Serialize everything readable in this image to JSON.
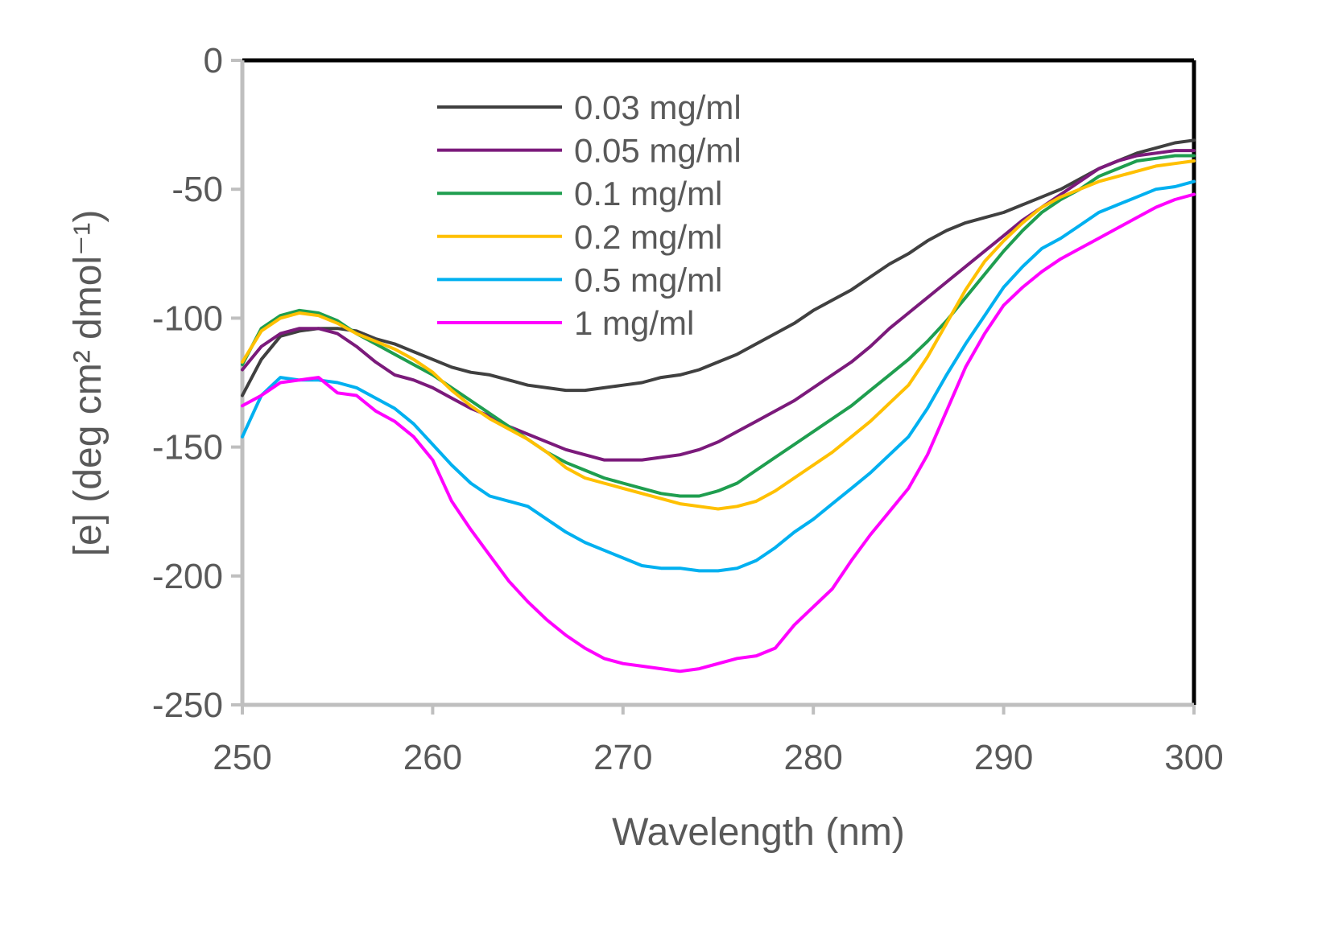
{
  "chart_data": {
    "type": "line",
    "xlabel": "Wavelength (nm)",
    "ylabel": "[e] (deg cm² dmol⁻¹)",
    "xlim": [
      250,
      300
    ],
    "ylim": [
      -250,
      0
    ],
    "xticks": [
      "250",
      "260",
      "270",
      "280",
      "290",
      "300"
    ],
    "yticks": [
      "0",
      "-50",
      "-100",
      "-150",
      "-200",
      "-250"
    ],
    "grid": false,
    "legend_position": "upper-center",
    "series": [
      {
        "name": "0.03 mg/ml",
        "color": "#404040",
        "x": [
          250,
          251,
          252,
          253,
          254,
          255,
          256,
          257,
          258,
          259,
          260,
          261,
          262,
          263,
          264,
          265,
          266,
          267,
          268,
          269,
          270,
          271,
          272,
          273,
          274,
          275,
          276,
          277,
          278,
          279,
          280,
          281,
          282,
          283,
          284,
          285,
          286,
          287,
          288,
          289,
          290,
          291,
          292,
          293,
          294,
          295,
          296,
          297,
          298,
          299,
          300
        ],
        "y": [
          -130,
          -116,
          -107,
          -105,
          -104,
          -104,
          -105,
          -108,
          -110,
          -113,
          -116,
          -119,
          -121,
          -122,
          -124,
          -126,
          -127,
          -128,
          -128,
          -127,
          -126,
          -125,
          -123,
          -122,
          -120,
          -117,
          -114,
          -110,
          -106,
          -102,
          -97,
          -93,
          -89,
          -84,
          -79,
          -75,
          -70,
          -66,
          -63,
          -61,
          -59,
          -56,
          -53,
          -50,
          -46,
          -42,
          -39,
          -36,
          -34,
          -32,
          -31
        ]
      },
      {
        "name": "0.05 mg/ml",
        "color": "#7B1A7B",
        "x": [
          250,
          251,
          252,
          253,
          254,
          255,
          256,
          257,
          258,
          259,
          260,
          261,
          262,
          263,
          264,
          265,
          266,
          267,
          268,
          269,
          270,
          271,
          272,
          273,
          274,
          275,
          276,
          277,
          278,
          279,
          280,
          281,
          282,
          283,
          284,
          285,
          286,
          287,
          288,
          289,
          290,
          291,
          292,
          293,
          294,
          295,
          296,
          297,
          298,
          299,
          300
        ],
        "y": [
          -120,
          -111,
          -106,
          -104,
          -104,
          -106,
          -111,
          -117,
          -122,
          -124,
          -127,
          -131,
          -135,
          -138,
          -142,
          -145,
          -148,
          -151,
          -153,
          -155,
          -155,
          -155,
          -154,
          -153,
          -151,
          -148,
          -144,
          -140,
          -136,
          -132,
          -127,
          -122,
          -117,
          -111,
          -104,
          -98,
          -92,
          -86,
          -80,
          -74,
          -68,
          -62,
          -57,
          -52,
          -47,
          -42,
          -39,
          -37,
          -36,
          -35,
          -35
        ]
      },
      {
        "name": "0.1 mg/ml",
        "color": "#1F9E4F",
        "x": [
          250,
          251,
          252,
          253,
          254,
          255,
          256,
          257,
          258,
          259,
          260,
          261,
          262,
          263,
          264,
          265,
          266,
          267,
          268,
          269,
          270,
          271,
          272,
          273,
          274,
          275,
          276,
          277,
          278,
          279,
          280,
          281,
          282,
          283,
          284,
          285,
          286,
          287,
          288,
          289,
          290,
          291,
          292,
          293,
          294,
          295,
          296,
          297,
          298,
          299,
          300
        ],
        "y": [
          -118,
          -104,
          -99,
          -97,
          -98,
          -101,
          -106,
          -110,
          -114,
          -118,
          -122,
          -127,
          -132,
          -137,
          -142,
          -147,
          -152,
          -156,
          -159,
          -162,
          -164,
          -166,
          -168,
          -169,
          -169,
          -167,
          -164,
          -159,
          -154,
          -149,
          -144,
          -139,
          -134,
          -128,
          -122,
          -116,
          -109,
          -101,
          -92,
          -83,
          -74,
          -66,
          -59,
          -54,
          -50,
          -45,
          -42,
          -39,
          -38,
          -37,
          -37
        ]
      },
      {
        "name": "0.2 mg/ml",
        "color": "#FFC000",
        "x": [
          250,
          251,
          252,
          253,
          254,
          255,
          256,
          257,
          258,
          259,
          260,
          261,
          262,
          263,
          264,
          265,
          266,
          267,
          268,
          269,
          270,
          271,
          272,
          273,
          274,
          275,
          276,
          277,
          278,
          279,
          280,
          281,
          282,
          283,
          284,
          285,
          286,
          287,
          288,
          289,
          290,
          291,
          292,
          293,
          294,
          295,
          296,
          297,
          298,
          299,
          300
        ],
        "y": [
          -117,
          -105,
          -100,
          -98,
          -99,
          -102,
          -106,
          -109,
          -112,
          -116,
          -121,
          -128,
          -134,
          -139,
          -143,
          -147,
          -152,
          -158,
          -162,
          -164,
          -166,
          -168,
          -170,
          -172,
          -173,
          -174,
          -173,
          -171,
          -167,
          -162,
          -157,
          -152,
          -146,
          -140,
          -133,
          -126,
          -115,
          -102,
          -89,
          -78,
          -70,
          -63,
          -57,
          -53,
          -50,
          -47,
          -45,
          -43,
          -41,
          -40,
          -39
        ]
      },
      {
        "name": "0.5 mg/ml",
        "color": "#00B0F0",
        "x": [
          250,
          251,
          252,
          253,
          254,
          255,
          256,
          257,
          258,
          259,
          260,
          261,
          262,
          263,
          264,
          265,
          266,
          267,
          268,
          269,
          270,
          271,
          272,
          273,
          274,
          275,
          276,
          277,
          278,
          279,
          280,
          281,
          282,
          283,
          284,
          285,
          286,
          287,
          288,
          289,
          290,
          291,
          292,
          293,
          294,
          295,
          296,
          297,
          298,
          299,
          300
        ],
        "y": [
          -146,
          -130,
          -123,
          -124,
          -124,
          -125,
          -127,
          -131,
          -135,
          -141,
          -149,
          -157,
          -164,
          -169,
          -171,
          -173,
          -178,
          -183,
          -187,
          -190,
          -193,
          -196,
          -197,
          -197,
          -198,
          -198,
          -197,
          -194,
          -189,
          -183,
          -178,
          -172,
          -166,
          -160,
          -153,
          -146,
          -135,
          -122,
          -110,
          -99,
          -88,
          -80,
          -73,
          -69,
          -64,
          -59,
          -56,
          -53,
          -50,
          -49,
          -47
        ]
      },
      {
        "name": "1 mg/ml",
        "color": "#FF00FF",
        "x": [
          250,
          251,
          252,
          253,
          254,
          255,
          256,
          257,
          258,
          259,
          260,
          261,
          262,
          263,
          264,
          265,
          266,
          267,
          268,
          269,
          270,
          271,
          272,
          273,
          274,
          275,
          276,
          277,
          278,
          279,
          280,
          281,
          282,
          283,
          284,
          285,
          286,
          287,
          288,
          289,
          290,
          291,
          292,
          293,
          294,
          295,
          296,
          297,
          298,
          299,
          300
        ],
        "y": [
          -134,
          -130,
          -125,
          -124,
          -123,
          -129,
          -130,
          -136,
          -140,
          -146,
          -155,
          -171,
          -182,
          -192,
          -202,
          -210,
          -217,
          -223,
          -228,
          -232,
          -234,
          -235,
          -236,
          -237,
          -236,
          -234,
          -232,
          -231,
          -228,
          -219,
          -212,
          -205,
          -194,
          -184,
          -175,
          -166,
          -153,
          -136,
          -119,
          -106,
          -95,
          -88,
          -82,
          -77,
          -73,
          -69,
          -65,
          -61,
          -57,
          -54,
          -52
        ]
      }
    ]
  }
}
